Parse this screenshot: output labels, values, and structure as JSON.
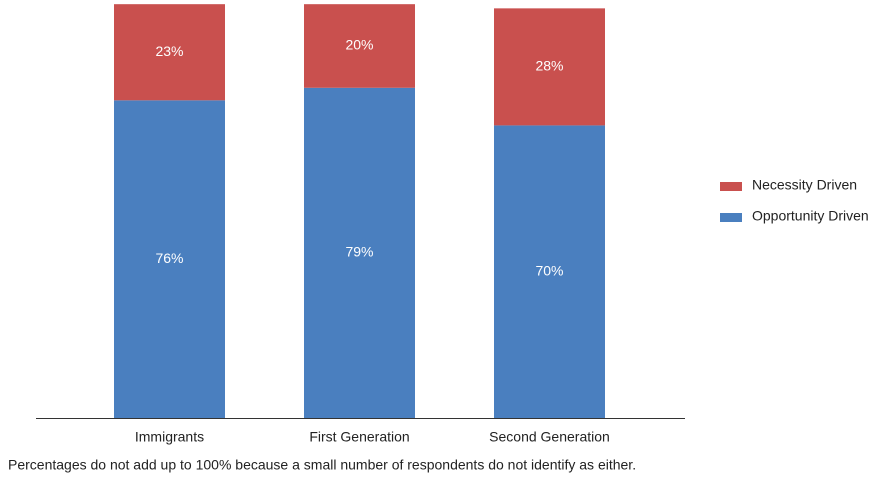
{
  "chart_data": {
    "type": "stacked-bar",
    "categories": [
      "Immigrants",
      "First Generation",
      "Second Generation"
    ],
    "series": [
      {
        "name": "Opportunity Driven",
        "color": "#4a7fbf",
        "values": [
          76,
          79,
          70
        ],
        "value_labels": [
          "76%",
          "79%",
          "70%"
        ]
      },
      {
        "name": "Necessity Driven",
        "color": "#c9504e",
        "values": [
          23,
          20,
          28
        ],
        "value_labels": [
          "23%",
          "20%",
          "28%"
        ]
      }
    ],
    "ylim": [
      0,
      100
    ],
    "legend": "right",
    "note": "Percentages do not add up to 100% because a small number of respondents do not identify as either."
  }
}
